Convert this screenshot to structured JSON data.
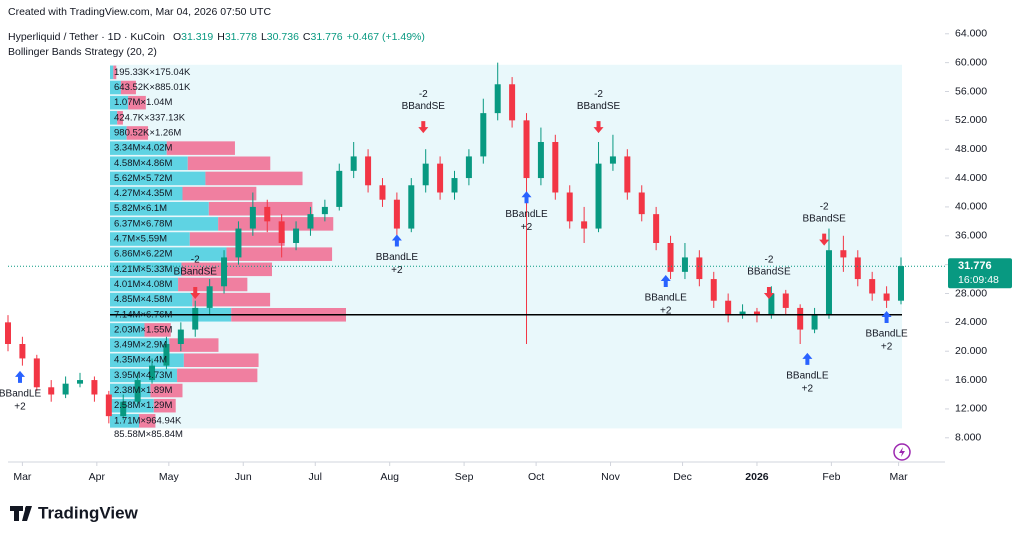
{
  "chart_data": {
    "type": "candlestick",
    "created": "Created with TradingView.com, Mar 04, 2026 07:50 UTC",
    "symbol": "Hyperliquid / Tether · 1D · KuCoin",
    "legend_values": [
      {
        "key": "O",
        "value": "31.319"
      },
      {
        "key": "H",
        "value": "31.778"
      },
      {
        "key": "L",
        "value": "30.736"
      },
      {
        "key": "C",
        "value": "31.776"
      }
    ],
    "change": "+0.467 (+1.49%)",
    "indicator": "Bollinger Bands Strategy (20, 2)",
    "brand": "TradingView",
    "up_color": "#089981",
    "down_color": "#f23645",
    "xlim": [
      -6,
      381
    ],
    "ylim": [
      7.0,
      64.8
    ],
    "xticks": [
      {
        "value": 0,
        "label": "Mar"
      },
      {
        "value": 31,
        "label": "Apr"
      },
      {
        "value": 61,
        "label": "May"
      },
      {
        "value": 92,
        "label": "Jun"
      },
      {
        "value": 122,
        "label": "Jul"
      },
      {
        "value": 153,
        "label": "Aug"
      },
      {
        "value": 184,
        "label": "Sep"
      },
      {
        "value": 214,
        "label": "Oct"
      },
      {
        "value": 245,
        "label": "Nov"
      },
      {
        "value": 275,
        "label": "Dec"
      },
      {
        "value": 306,
        "label": "2026"
      },
      {
        "value": 337,
        "label": "Feb"
      },
      {
        "value": 365,
        "label": "Mar"
      }
    ],
    "yticks": [
      {
        "value": 64,
        "label": "64.000"
      },
      {
        "value": 60,
        "label": "60.000"
      },
      {
        "value": 56,
        "label": "56.000"
      },
      {
        "value": 52,
        "label": "52.000"
      },
      {
        "value": 48,
        "label": "48.000"
      },
      {
        "value": 44,
        "label": "44.000"
      },
      {
        "value": 40,
        "label": "40.000"
      },
      {
        "value": 36,
        "label": "36.000"
      },
      {
        "value": 32,
        "label": "32.000"
      },
      {
        "value": 28,
        "label": "28.000"
      },
      {
        "value": 24,
        "label": "24.000"
      },
      {
        "value": 20,
        "label": "20.000"
      },
      {
        "value": 16,
        "label": "16.000"
      },
      {
        "value": 12,
        "label": "12.000"
      },
      {
        "value": 8,
        "label": "8.000"
      }
    ],
    "x": [
      -6,
      0,
      6,
      12,
      18,
      24,
      30,
      36,
      42,
      48,
      54,
      60,
      66,
      72,
      78,
      84,
      90,
      96,
      102,
      108,
      114,
      120,
      126,
      132,
      138,
      144,
      150,
      156,
      162,
      168,
      174,
      180,
      186,
      192,
      198,
      204,
      210,
      216,
      222,
      228,
      234,
      240,
      246,
      252,
      258,
      264,
      270,
      276,
      282,
      288,
      294,
      300,
      306,
      312,
      318,
      324,
      330,
      336,
      342,
      348,
      354,
      360,
      366
    ],
    "ohlc": [
      [
        24,
        25,
        20,
        21
      ],
      [
        21,
        22,
        18,
        19
      ],
      [
        19,
        19.5,
        14.5,
        15
      ],
      [
        15,
        16,
        13,
        14
      ],
      [
        14,
        16.5,
        13.5,
        15.5
      ],
      [
        15.5,
        17,
        15,
        16
      ],
      [
        16,
        16.5,
        13,
        14
      ],
      [
        14,
        14.5,
        10,
        11
      ],
      [
        11,
        14,
        10.5,
        13
      ],
      [
        13,
        17,
        12.5,
        16
      ],
      [
        16,
        19,
        15.5,
        18
      ],
      [
        18,
        22,
        17.5,
        21
      ],
      [
        21,
        24,
        20,
        23
      ],
      [
        23,
        27,
        22,
        26
      ],
      [
        26,
        30,
        25,
        29
      ],
      [
        29,
        34,
        28,
        33
      ],
      [
        33,
        38,
        32,
        37
      ],
      [
        37,
        42,
        36,
        40
      ],
      [
        40,
        41,
        36.5,
        38
      ],
      [
        38,
        39,
        33,
        35
      ],
      [
        35,
        38,
        34,
        37
      ],
      [
        37,
        40,
        36,
        39
      ],
      [
        39,
        41,
        38,
        40
      ],
      [
        40,
        46,
        39.5,
        45
      ],
      [
        45,
        49,
        44,
        47
      ],
      [
        47,
        48,
        42,
        43
      ],
      [
        43,
        44,
        40,
        41
      ],
      [
        41,
        42,
        36,
        37
      ],
      [
        37,
        44,
        36.5,
        43
      ],
      [
        43,
        48,
        42,
        46
      ],
      [
        46,
        47,
        41,
        42
      ],
      [
        42,
        45,
        41,
        44
      ],
      [
        44,
        48,
        43,
        47
      ],
      [
        47,
        55,
        46,
        53
      ],
      [
        53,
        60,
        52,
        57
      ],
      [
        57,
        58,
        51,
        52
      ],
      [
        52,
        53,
        21,
        44
      ],
      [
        44,
        51,
        43,
        49
      ],
      [
        49,
        50,
        41,
        42
      ],
      [
        42,
        43,
        37,
        38
      ],
      [
        38,
        40,
        35,
        37
      ],
      [
        37,
        49,
        36.5,
        46
      ],
      [
        46,
        50,
        45,
        47
      ],
      [
        47,
        48,
        41,
        42
      ],
      [
        42,
        43,
        38,
        39
      ],
      [
        39,
        40,
        34,
        35
      ],
      [
        35,
        36,
        30,
        31
      ],
      [
        31,
        35,
        30,
        33
      ],
      [
        33,
        34,
        29,
        30
      ],
      [
        30,
        31,
        26,
        27
      ],
      [
        27,
        28,
        24,
        25
      ],
      [
        25,
        26.5,
        24.5,
        25.5
      ],
      [
        25.5,
        26,
        24,
        25
      ],
      [
        25,
        29,
        24.5,
        28
      ],
      [
        28,
        28.5,
        25,
        26
      ],
      [
        26,
        26.5,
        21,
        23
      ],
      [
        23,
        26,
        22.5,
        25
      ],
      [
        25,
        37,
        24.5,
        34
      ],
      [
        34,
        36,
        31,
        33
      ],
      [
        33,
        34,
        29,
        30
      ],
      [
        30,
        31,
        27,
        28
      ],
      [
        28,
        29,
        26,
        27
      ],
      [
        27,
        33,
        26.5,
        31.8
      ]
    ],
    "last_price": {
      "value": 31.776,
      "label": "31.776"
    },
    "countdown": "16:09:48",
    "signals": [
      {
        "x": -1,
        "price": 16.3,
        "side": "long",
        "name": "BBandLE",
        "qty": "+2"
      },
      {
        "x": 72,
        "price": 28.2,
        "side": "short",
        "name": "BBandSE",
        "qty": "-2"
      },
      {
        "x": 156,
        "price": 35.2,
        "side": "long",
        "name": "BBandLE",
        "qty": "+2"
      },
      {
        "x": 167,
        "price": 51.2,
        "side": "short",
        "name": "BBandSE",
        "qty": "-2"
      },
      {
        "x": 210,
        "price": 41.2,
        "side": "long",
        "name": "BBandLE",
        "qty": "+2"
      },
      {
        "x": 240,
        "price": 51.2,
        "side": "short",
        "name": "BBandSE",
        "qty": "-2"
      },
      {
        "x": 268,
        "price": 29.6,
        "side": "long",
        "name": "BBandLE",
        "qty": "+2"
      },
      {
        "x": 311,
        "price": 28.2,
        "side": "short",
        "name": "BBandSE",
        "qty": "-2"
      },
      {
        "x": 327,
        "price": 18.8,
        "side": "long",
        "name": "BBandLE",
        "qty": "+2"
      },
      {
        "x": 334,
        "price": 35.6,
        "side": "short",
        "name": "BBandSE",
        "qty": "-2"
      },
      {
        "x": 360,
        "price": 24.6,
        "side": "long",
        "name": "BBandLE",
        "qty": "+2"
      }
    ],
    "volume_profile": {
      "price_range": [
        9.3,
        59.7
      ],
      "up_color": "#5fd3e3",
      "down_color": "#f07fa0",
      "rows": [
        {
          "up": 195330,
          "down": 175040,
          "label": "195.33K×175.04K"
        },
        {
          "up": 643520,
          "down": 885010,
          "label": "643.52K×885.01K"
        },
        {
          "up": 1070000,
          "down": 1040000,
          "label": "1.07M×1.04M"
        },
        {
          "up": 424700,
          "down": 337130,
          "label": "424.7K×337.13K"
        },
        {
          "up": 980520,
          "down": 1260000,
          "label": "980.52K×1.26M"
        },
        {
          "up": 3340000,
          "down": 4020000,
          "label": "3.34M×4.02M"
        },
        {
          "up": 4580000,
          "down": 4860000,
          "label": "4.58M×4.86M"
        },
        {
          "up": 5620000,
          "down": 5720000,
          "label": "5.62M×5.72M"
        },
        {
          "up": 4270000,
          "down": 4350000,
          "label": "4.27M×4.35M"
        },
        {
          "up": 5820000,
          "down": 6100000,
          "label": "5.82M×6.1M"
        },
        {
          "up": 6370000,
          "down": 6780000,
          "label": "6.37M×6.78M"
        },
        {
          "up": 4700000,
          "down": 5590000,
          "label": "4.7M×5.59M"
        },
        {
          "up": 6860000,
          "down": 6220000,
          "label": "6.86M×6.22M"
        },
        {
          "up": 4210000,
          "down": 5330000,
          "label": "4.21M×5.33M"
        },
        {
          "up": 4010000,
          "down": 4080000,
          "label": "4.01M×4.08M"
        },
        {
          "up": 4850000,
          "down": 4580000,
          "label": "4.85M×4.58M"
        },
        {
          "up": 7140000,
          "down": 6760000,
          "label": "7.14M×6.76M"
        },
        {
          "up": 2030000,
          "down": 1550000,
          "label": "2.03M×1.55M"
        },
        {
          "up": 3490000,
          "down": 2900000,
          "label": "3.49M×2.9M"
        },
        {
          "up": 4350000,
          "down": 4400000,
          "label": "4.35M×4.4M"
        },
        {
          "up": 3950000,
          "down": 4730000,
          "label": "3.95M×4.73M"
        },
        {
          "up": 2380000,
          "down": 1890000,
          "label": "2.38M×1.89M"
        },
        {
          "up": 2580000,
          "down": 1290000,
          "label": "2.58M×1.29M"
        },
        {
          "up": 1710000,
          "down": 964940,
          "label": "1.71M×964.94K"
        }
      ],
      "total": {
        "up": 85580000,
        "down": 85840000,
        "label": "85.58M×85.84M"
      }
    }
  }
}
